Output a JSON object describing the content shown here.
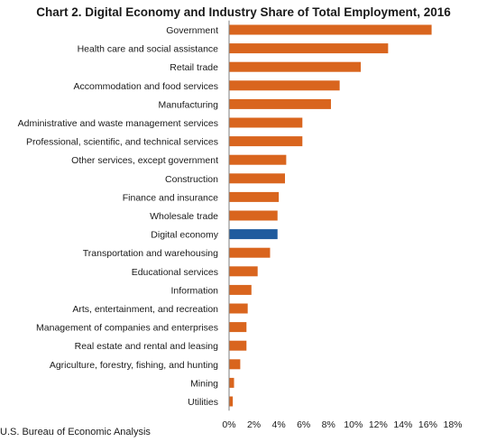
{
  "source": "U.S. Bureau of Economic Analysis",
  "colors": {
    "industry": "#d9651e",
    "highlight": "#1f5b9e",
    "axis": "#7f7f7f"
  },
  "chart_data": {
    "type": "bar",
    "orientation": "horizontal",
    "title": "Chart 2. Digital Economy and Industry Share of Total Employment, 2016",
    "xlabel": "",
    "ylabel": "",
    "xlim": [
      0,
      18
    ],
    "ticks": [
      "0%",
      "2%",
      "4%",
      "6%",
      "8%",
      "10%",
      "12%",
      "14%",
      "16%",
      "18%"
    ],
    "grid": false,
    "highlight_category": "Digital economy",
    "categories": [
      "Government",
      "Health care and social assistance",
      "Retail trade",
      "Accommodation and food services",
      "Manufacturing",
      "Administrative and waste management services",
      "Professional, scientific, and technical services",
      "Other services, except government",
      "Construction",
      "Finance and insurance",
      "Wholesale trade",
      "Digital economy",
      "Transportation and warehousing",
      "Educational services",
      "Information",
      "Arts, entertainment, and recreation",
      "Management of companies and enterprises",
      "Real estate and rental and leasing",
      "Agriculture, forestry, fishing, and hunting",
      "Mining",
      "Utilities"
    ],
    "values": [
      16.3,
      12.8,
      10.6,
      8.9,
      8.2,
      5.9,
      5.9,
      4.6,
      4.5,
      4.0,
      3.9,
      3.9,
      3.3,
      2.3,
      1.8,
      1.5,
      1.4,
      1.4,
      0.9,
      0.4,
      0.3
    ]
  }
}
